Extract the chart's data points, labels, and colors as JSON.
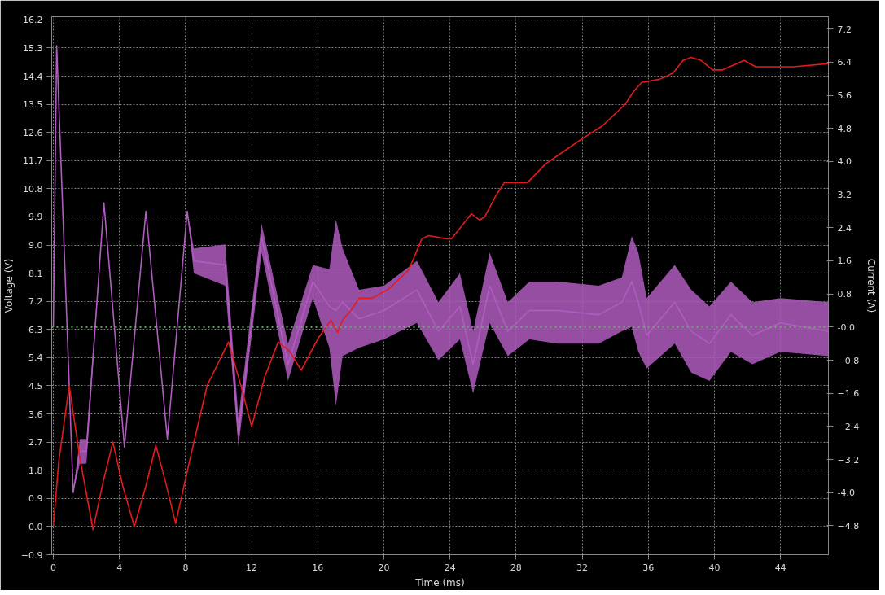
{
  "chart_data": {
    "type": "line",
    "xlabel": "Time (ms)",
    "ylabel": "Voltage (V)",
    "y2label": "Current (A)",
    "xlim": [
      -0.1,
      46.9
    ],
    "xticks": [
      0,
      4,
      8,
      12,
      16,
      20,
      24,
      28,
      32,
      36,
      40,
      44
    ],
    "ylim": [
      -0.9,
      16.3
    ],
    "yticks": [
      -0.9,
      {
        "value": 0,
        "label": "0.0"
      },
      0.9,
      1.8,
      2.7,
      3.6,
      4.5,
      5.4,
      6.3,
      7.2,
      8.1,
      {
        "value": 9,
        "label": "9.0"
      },
      9.9,
      10.8,
      11.7,
      12.6,
      13.5,
      14.4,
      15.3,
      16.2
    ],
    "y2lim": [
      -5.5,
      7.5
    ],
    "y2ticks": [
      -4.8,
      {
        "value": -4,
        "label": "-4.0"
      },
      -3.2,
      -2.4,
      -1.6,
      -0.8,
      {
        "value": 0,
        "label": "-0.0"
      },
      0.8,
      1.6,
      2.4,
      3.2,
      {
        "value": 4,
        "label": "4.0"
      },
      4.8,
      5.6,
      6.4,
      7.2
    ],
    "grid": true,
    "marker": "none",
    "line_style": "solid",
    "ref_lines": [
      {
        "axis": "y2",
        "value": 0,
        "color": "#5cb85c",
        "line_style": "dotted"
      }
    ],
    "series": [
      {
        "axis": "y2",
        "color": "#b05cc0",
        "x": [
          0,
          0.2,
          1.2,
          1.6,
          2.0,
          3.06,
          4.3,
          5.6,
          6.9,
          8.1,
          8.5,
          10.4,
          11.2,
          12.6,
          14.2,
          15.7,
          16.7,
          17.1,
          17.5,
          18.5,
          20,
          22,
          23.3,
          24.6,
          25.4,
          26.4,
          27.5,
          28.8,
          30.5,
          33,
          34.4,
          35.0,
          35.4,
          35.9,
          37.6,
          38.6,
          39.7,
          41.0,
          42.3,
          44,
          46.9
        ],
        "values": [
          0,
          6.8,
          -4.0,
          -3.0,
          -3.0,
          3.0,
          -2.9,
          2.8,
          -2.7,
          2.8,
          1.6,
          1.5,
          -2.6,
          2.2,
          -0.9,
          1.1,
          0.5,
          0.4,
          0.6,
          0.2,
          0.4,
          0.9,
          -0.1,
          0.5,
          -0.9,
          1.0,
          -0.1,
          0.4,
          0.4,
          0.3,
          0.6,
          1.1,
          0.6,
          -0.2,
          0.6,
          -0.1,
          -0.4,
          0.3,
          -0.2,
          0.1,
          -0.1
        ],
        "lower": [
          0,
          6.8,
          -4.0,
          -3.3,
          -3.3,
          3.0,
          -2.9,
          2.8,
          -2.7,
          2.8,
          1.3,
          1.0,
          -2.9,
          1.8,
          -1.3,
          0.7,
          -0.5,
          -1.9,
          -0.7,
          -0.5,
          -0.3,
          0.1,
          -0.8,
          -0.3,
          -1.6,
          0.1,
          -0.7,
          -0.3,
          -0.4,
          -0.4,
          -0.1,
          0.0,
          -0.6,
          -1.0,
          -0.4,
          -1.1,
          -1.3,
          -0.6,
          -0.9,
          -0.6,
          -0.7
        ],
        "upper": [
          0,
          6.8,
          -4.0,
          -2.7,
          -2.7,
          3.0,
          -2.9,
          2.8,
          -2.7,
          2.8,
          1.9,
          2.0,
          -2.2,
          2.5,
          -0.4,
          1.5,
          1.4,
          2.6,
          1.9,
          0.9,
          1.0,
          1.6,
          0.6,
          1.3,
          -0.1,
          1.8,
          0.6,
          1.1,
          1.1,
          1.0,
          1.2,
          2.2,
          1.8,
          0.7,
          1.5,
          0.9,
          0.5,
          1.1,
          0.6,
          0.7,
          0.6
        ]
      },
      {
        "axis": "y",
        "color": "#e41a1c",
        "x": [
          0,
          0.33,
          0.96,
          1.6,
          2.4,
          3.0,
          3.6,
          4.2,
          4.9,
          5.6,
          6.2,
          6.8,
          7.4,
          8.2,
          9.3,
          10.6,
          11.3,
          12.0,
          12.8,
          13.6,
          14.3,
          15.0,
          16.0,
          16.8,
          17.2,
          17.5,
          18.0,
          18.5,
          19.3,
          20.3,
          21.5,
          22.3,
          22.7,
          23.8,
          24.1,
          25.3,
          25.8,
          26.1,
          26.8,
          27.3,
          28.0,
          28.7,
          29.8,
          30.9,
          32.0,
          33.2,
          34.6,
          35.1,
          35.6,
          36.7,
          37.5,
          38.1,
          38.6,
          39.2,
          39.9,
          40.5,
          41.8,
          42.5,
          43.7,
          44.8,
          46.9
        ],
        "values": [
          0.0,
          2.1,
          4.5,
          2.2,
          -0.1,
          1.4,
          2.7,
          1.3,
          0.0,
          1.3,
          2.6,
          1.4,
          0.1,
          2.0,
          4.5,
          5.9,
          4.6,
          3.2,
          4.8,
          5.9,
          5.6,
          5.0,
          6.0,
          6.6,
          6.2,
          6.6,
          6.9,
          7.3,
          7.3,
          7.6,
          8.2,
          9.2,
          9.3,
          9.2,
          9.2,
          10.0,
          9.8,
          9.9,
          10.6,
          11.0,
          11.0,
          11.0,
          11.6,
          12.0,
          12.4,
          12.8,
          13.5,
          13.9,
          14.2,
          14.3,
          14.5,
          14.9,
          15.0,
          14.9,
          14.6,
          14.6,
          14.9,
          14.7,
          14.7,
          14.7,
          14.8
        ]
      }
    ]
  }
}
